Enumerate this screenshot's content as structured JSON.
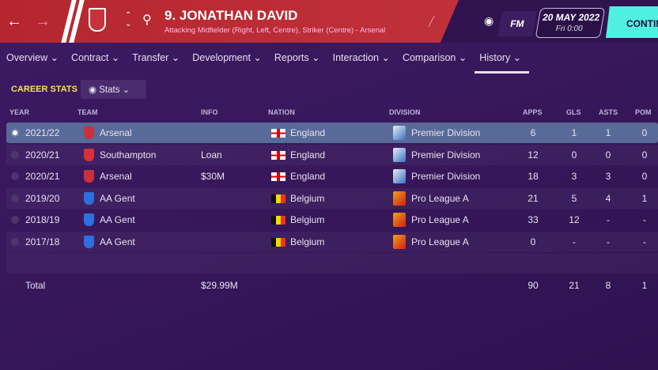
{
  "header": {
    "title": "9. JONATHAN DAVID",
    "subtitle": "Attacking Midfielder (Right, Left, Centre), Striker (Centre) - Arsenal",
    "fm_label": "FM",
    "date": "20 MAY 2022",
    "time": "Fri 0:00",
    "continue_label": "CONTIN"
  },
  "nav": [
    "Overview",
    "Contract",
    "Transfer",
    "Development",
    "Reports",
    "Interaction",
    "Comparison",
    "History"
  ],
  "section": {
    "title": "CAREER STATS",
    "view_label": "Stats"
  },
  "columns": [
    "YEAR",
    "TEAM",
    "INFO",
    "NATION",
    "DIVISION",
    "APPS",
    "GLS",
    "ASTS",
    "POM"
  ],
  "rows": [
    {
      "year": "2021/22",
      "team": "Arsenal",
      "info": "",
      "nation": "England",
      "division": "Premier Division",
      "apps": "6",
      "gls": "1",
      "asts": "1",
      "pom": "0"
    },
    {
      "year": "2020/21",
      "team": "Southampton",
      "info": "Loan",
      "nation": "England",
      "division": "Premier Division",
      "apps": "12",
      "gls": "0",
      "asts": "0",
      "pom": "0"
    },
    {
      "year": "2020/21",
      "team": "Arsenal",
      "info": "$30M",
      "nation": "England",
      "division": "Premier Division",
      "apps": "18",
      "gls": "3",
      "asts": "3",
      "pom": "0"
    },
    {
      "year": "2019/20",
      "team": "AA Gent",
      "info": "",
      "nation": "Belgium",
      "division": "Pro League A",
      "apps": "21",
      "gls": "5",
      "asts": "4",
      "pom": "1"
    },
    {
      "year": "2018/19",
      "team": "AA Gent",
      "info": "",
      "nation": "Belgium",
      "division": "Pro League A",
      "apps": "33",
      "gls": "12",
      "asts": "-",
      "pom": "-"
    },
    {
      "year": "2017/18",
      "team": "AA Gent",
      "info": "",
      "nation": "Belgium",
      "division": "Pro League A",
      "apps": "0",
      "gls": "-",
      "asts": "-",
      "pom": "-"
    }
  ],
  "total": {
    "label": "Total",
    "info": "$29.99M",
    "apps": "90",
    "gls": "21",
    "asts": "8",
    "pom": "1"
  },
  "colors": {
    "header_red": "#b5262e",
    "background": "#3d1a63",
    "continue": "#4ff0e0",
    "section_title": "#f4e64a",
    "selected_row": "#586a98"
  }
}
